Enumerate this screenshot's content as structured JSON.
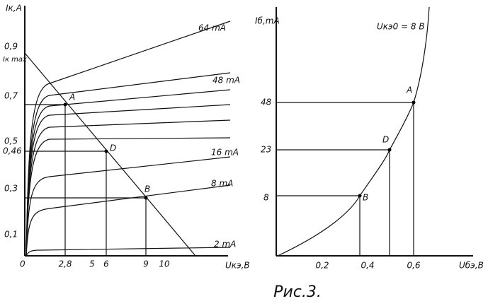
{
  "left_plot": {
    "y_label": "Iк,A",
    "x_label": "Uкэ,B",
    "y_ticks": [
      "0,9",
      "Iк max",
      "0,7",
      "0,5",
      "0,46",
      "0,3",
      "0,1"
    ],
    "origin": "0",
    "x_ticks": [
      "2,8",
      "5",
      "6",
      "9",
      "10"
    ],
    "curve_labels": [
      "64 mA",
      "48 mA",
      "16 mA",
      "8 mA",
      "2 mA"
    ],
    "points": [
      "A",
      "D",
      "B"
    ]
  },
  "right_plot": {
    "y_label": "Iб,mA",
    "condition": "Uкэ0 = 8 B",
    "x_label": "Uбэ,B",
    "y_ticks": [
      "48",
      "23",
      "8"
    ],
    "x_ticks": [
      "0,2",
      "0,4",
      "0,6"
    ],
    "points": [
      "A",
      "D",
      "B"
    ]
  },
  "caption": "Рис.3."
}
